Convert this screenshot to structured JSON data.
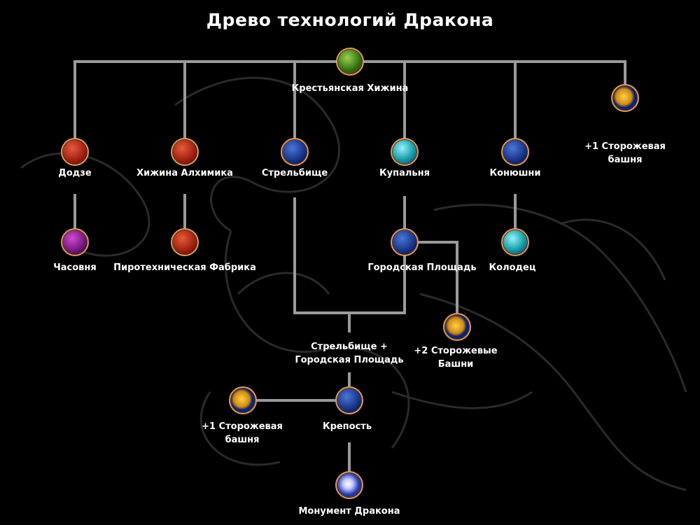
{
  "title": "Древо технологий Дракона",
  "colors": {
    "background": "#000000",
    "connector": "#9a9a9a",
    "icon_border": "#d79a5e",
    "text": "#ffffff"
  },
  "nodes": {
    "root": {
      "label": "Крестьянская Хижина",
      "icon": "peasant-hut-icon"
    },
    "dojo": {
      "label": "Додзе",
      "icon": "dojo-icon"
    },
    "alchemist": {
      "label": "Хижина Алхимика",
      "icon": "alchemist-hut-icon"
    },
    "range": {
      "label": "Стрельбище",
      "icon": "archery-range-icon"
    },
    "bath": {
      "label": "Купальня",
      "icon": "bathhouse-icon"
    },
    "stables": {
      "label": "Конюшни",
      "icon": "stables-icon"
    },
    "tower1": {
      "label1": "+1 Сторожевая",
      "label2": "башня",
      "icon": "watchtower-icon"
    },
    "chapel": {
      "label": "Часовня",
      "icon": "chapel-icon"
    },
    "fireworks": {
      "label": "Пиротехническая Фабрика",
      "icon": "fireworks-factory-icon"
    },
    "square": {
      "label": "Городская Площадь",
      "icon": "town-square-icon"
    },
    "well": {
      "label": "Колодец",
      "icon": "well-icon"
    },
    "tower2": {
      "label1": "+2 Сторожевые",
      "label2": "Башни",
      "icon": "watchtower-icon"
    },
    "combo": {
      "label1": "Стрельбище +",
      "label2": "Городская Площадь"
    },
    "fortress": {
      "label": "Крепость",
      "icon": "fortress-icon"
    },
    "tower3": {
      "label1": "+1 Сторожевая",
      "label2": "башня",
      "icon": "watchtower-icon"
    },
    "monument": {
      "label": "Монумент Дракона",
      "icon": "dragon-monument-icon"
    }
  }
}
